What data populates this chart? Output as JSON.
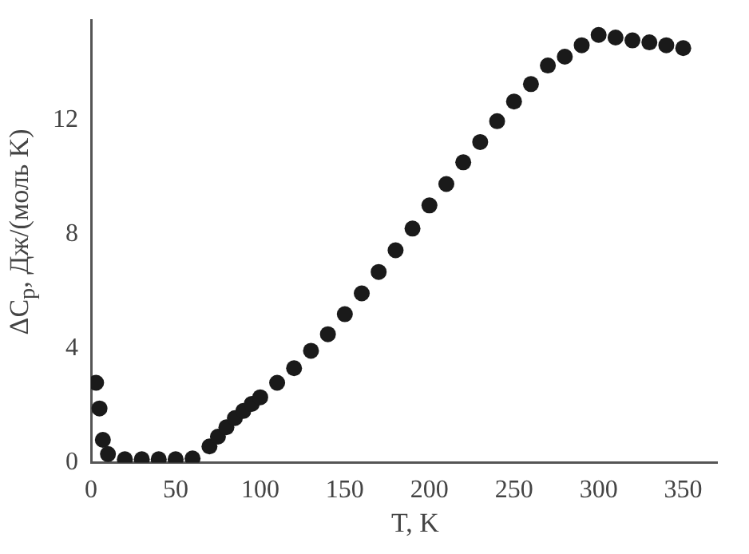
{
  "chart_data": {
    "type": "scatter",
    "xlabel": "T, K",
    "ylabel": "ΔC$_{p}$, Дж/(моль K)",
    "x": [
      3,
      5,
      7,
      10,
      20,
      30,
      40,
      50,
      60,
      70,
      75,
      80,
      85,
      90,
      95,
      100,
      110,
      120,
      130,
      140,
      150,
      160,
      170,
      180,
      190,
      200,
      210,
      220,
      230,
      240,
      250,
      260,
      270,
      280,
      290,
      300,
      310,
      320,
      330,
      340,
      350
    ],
    "series": [
      {
        "color": "#1a1a1a",
        "values": [
          2.8,
          1.9,
          0.8,
          0.3,
          0.12,
          0.12,
          0.12,
          0.12,
          0.15,
          0.57,
          0.91,
          1.24,
          1.56,
          1.81,
          2.06,
          2.29,
          2.8,
          3.31,
          3.92,
          4.5,
          5.2,
          5.93,
          6.68,
          7.44,
          8.2,
          9.01,
          9.76,
          10.52,
          11.23,
          11.96,
          12.65,
          13.26,
          13.91,
          14.22,
          14.62,
          14.98,
          14.89,
          14.79,
          14.72,
          14.62,
          14.52
        ]
      }
    ],
    "xlim": [
      0,
      370
    ],
    "xticks": [
      0,
      50,
      100,
      150,
      200,
      250,
      300,
      350
    ],
    "ylim": [
      0,
      15.5
    ],
    "yticks": [
      0,
      4,
      8,
      12
    ],
    "grid": false,
    "legend": false,
    "marker": "circle"
  }
}
